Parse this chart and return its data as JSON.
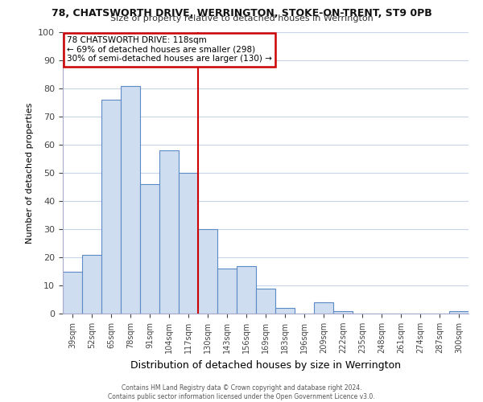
{
  "title1": "78, CHATSWORTH DRIVE, WERRINGTON, STOKE-ON-TRENT, ST9 0PB",
  "title2": "Size of property relative to detached houses in Werrington",
  "xlabel": "Distribution of detached houses by size in Werrington",
  "ylabel": "Number of detached properties",
  "bar_labels": [
    "39sqm",
    "52sqm",
    "65sqm",
    "78sqm",
    "91sqm",
    "104sqm",
    "117sqm",
    "130sqm",
    "143sqm",
    "156sqm",
    "169sqm",
    "183sqm",
    "196sqm",
    "209sqm",
    "222sqm",
    "235sqm",
    "248sqm",
    "261sqm",
    "274sqm",
    "287sqm",
    "300sqm"
  ],
  "bar_values": [
    15,
    21,
    76,
    81,
    46,
    58,
    50,
    30,
    16,
    17,
    9,
    2,
    0,
    4,
    1,
    0,
    0,
    0,
    0,
    0,
    1
  ],
  "bar_color": "#cfddf0",
  "bar_edge_color": "#5b8ac7",
  "vline_color": "#cc0000",
  "vline_index": 6,
  "ylim": [
    0,
    100
  ],
  "yticks": [
    0,
    10,
    20,
    30,
    40,
    50,
    60,
    70,
    80,
    90,
    100
  ],
  "annotation_line1": "78 CHATSWORTH DRIVE: 118sqm",
  "annotation_line2": "← 69% of detached houses are smaller (298)",
  "annotation_line3": "30% of semi-detached houses are larger (130) →",
  "annotation_box_facecolor": "#ffffff",
  "annotation_box_edgecolor": "#cc0000",
  "footer1": "Contains HM Land Registry data © Crown copyright and database right 2024.",
  "footer2": "Contains public sector information licensed under the Open Government Licence v3.0.",
  "background_color": "#ffffff",
  "grid_color": "#c8d4e8",
  "spine_color": "#aaaacc"
}
